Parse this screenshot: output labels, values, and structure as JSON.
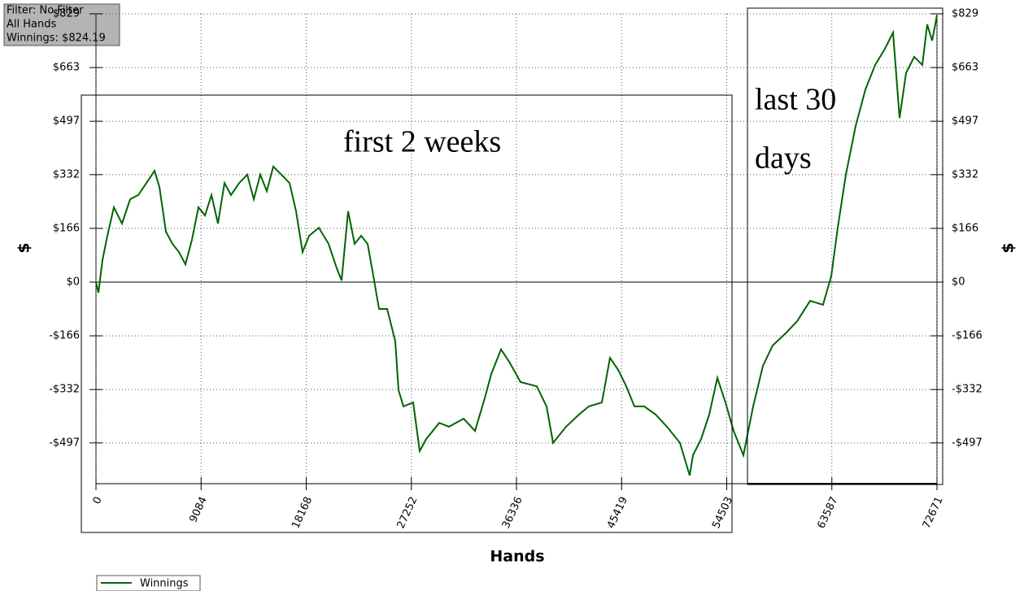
{
  "chart_data": {
    "type": "line",
    "filter": [
      "Filter: No Filter",
      "All Hands",
      "Winnings: $824.19"
    ],
    "annotations": [
      "first 2 weeks",
      "last 30",
      "days"
    ],
    "xlabel": "Hands",
    "ylabel": "$",
    "x": [
      0,
      211,
      562,
      984,
      1546,
      2249,
      2952,
      3654,
      4357,
      5060,
      5482,
      6044,
      6606,
      7168,
      7730,
      8292,
      8855,
      9417,
      9979,
      10541,
      11103,
      11665,
      12368,
      13071,
      13633,
      14195,
      14757,
      15319,
      16022,
      16725,
      17287,
      17849,
      18411,
      19254,
      20098,
      20801,
      21223,
      21785,
      22347,
      22909,
      23472,
      24034,
      24455,
      25158,
      25861,
      26142,
      26564,
      27407,
      27970,
      28532,
      29656,
      30499,
      31764,
      32748,
      33592,
      34154,
      34997,
      35700,
      36684,
      38090,
      38933,
      39496,
      40620,
      41744,
      42588,
      43712,
      44415,
      45118,
      45821,
      46524,
      47367,
      48351,
      49335,
      50460,
      51303,
      51584,
      52287,
      52990,
      53693,
      54395,
      55098,
      55942,
      56785,
      57628,
      58472,
      59596,
      60580,
      61704,
      62828,
      63531,
      64094,
      64796,
      65640,
      66483,
      67327,
      68170,
      68873,
      69436,
      69998,
      70701,
      71404,
      71826,
      72247,
      72671
    ],
    "series": [
      {
        "name": "Winnings",
        "color": "#006400",
        "values": [
          0,
          -33,
          68,
          143,
          231,
          181,
          256,
          269,
          306,
          344,
          294,
          156,
          118,
          93,
          55,
          131,
          231,
          206,
          269,
          181,
          306,
          269,
          306,
          332,
          256,
          332,
          281,
          357,
          332,
          306,
          219,
          93,
          143,
          168,
          118,
          43,
          5,
          219,
          118,
          143,
          118,
          5,
          -83,
          -83,
          -183,
          -334,
          -384,
          -372,
          -522,
          -485,
          -435,
          -447,
          -422,
          -460,
          -359,
          -284,
          -208,
          -246,
          -309,
          -322,
          -384,
          -497,
          -447,
          -409,
          -384,
          -372,
          -234,
          -271,
          -322,
          -384,
          -384,
          -409,
          -447,
          -497,
          -598,
          -535,
          -485,
          -409,
          -296,
          -372,
          -460,
          -535,
          -384,
          -259,
          -196,
          -158,
          -121,
          -58,
          -70,
          18,
          168,
          332,
          482,
          595,
          671,
          721,
          771,
          507,
          646,
          696,
          671,
          796,
          746,
          824
        ]
      }
    ],
    "xlim": [
      0,
      72671
    ],
    "ylim": [
      -623,
      829
    ],
    "xticks": [
      0,
      9084,
      18168,
      27252,
      36336,
      45419,
      54503,
      63587,
      72671
    ],
    "yticks": [
      {
        "value": -497,
        "label": "-$497"
      },
      {
        "value": -332,
        "label": "-$332"
      },
      {
        "value": -166,
        "label": "-$166"
      },
      {
        "value": 0,
        "label": "$0"
      },
      {
        "value": 166,
        "label": "$166"
      },
      {
        "value": 332,
        "label": "$332"
      },
      {
        "value": 497,
        "label": "$497"
      },
      {
        "value": 663,
        "label": "$663"
      },
      {
        "value": 829,
        "label": "$829"
      }
    ],
    "grid": true
  }
}
